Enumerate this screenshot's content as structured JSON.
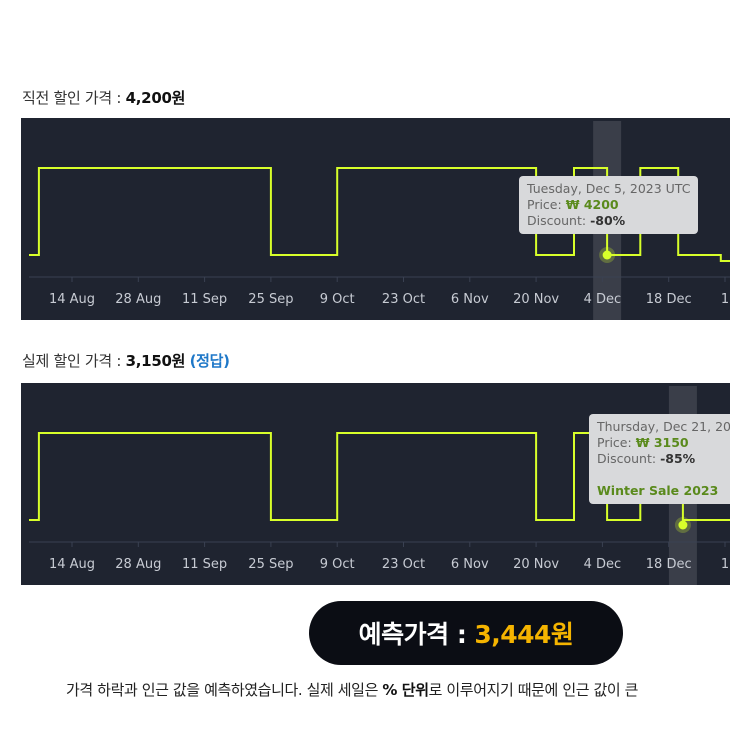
{
  "chart1_label": {
    "prefix": "직전 할인 가격 : ",
    "value": "4,200원"
  },
  "chart2_label": {
    "prefix": "실제 할인 가격 : ",
    "value": "3,150원",
    "tag": "(정답)"
  },
  "x_ticks": [
    "14 Aug",
    "28 Aug",
    "11 Sep",
    "25 Sep",
    "9 Oct",
    "23 Oct",
    "6 Nov",
    "20 Nov",
    "4 Dec",
    "18 Dec",
    "1"
  ],
  "tooltip1": {
    "date": "Tuesday, Dec 5, 2023 UTC",
    "price_label": "Price: ",
    "price": "₩ 4200",
    "discount_label": "Discount: ",
    "discount": "-80%"
  },
  "tooltip2": {
    "date": "Thursday, Dec 21, 20",
    "price_label": "Price: ",
    "price": "₩ 3150",
    "discount_label": "Discount: ",
    "discount": "-85%",
    "event": "Winter Sale 2023"
  },
  "prediction": {
    "label": "예측가격 : ",
    "value": "3,444원"
  },
  "note": {
    "pre": "가격 하락과 인근 값을 예측하였습니다. 실제 세일은 ",
    "bold": "% 단위",
    "post": "로 이루어지기 때문에 인근 값이 큰"
  },
  "colors": {
    "line": "#d8ff2a",
    "chart_bg": "#1f2430",
    "accent": "#f5b400",
    "correct": "#1f78c8"
  },
  "chart_data": [
    {
      "type": "line",
      "title": "",
      "xlabel": "",
      "ylabel": "",
      "x": [
        "2023-08-05",
        "2023-08-07",
        "2023-09-25",
        "2023-10-09",
        "2023-11-20",
        "2023-11-28",
        "2023-12-05",
        "2023-12-12",
        "2023-12-20",
        "2023-12-29"
      ],
      "series": [
        {
          "values": [
            "low",
            "high",
            "low",
            "high",
            "low",
            "high",
            "low",
            "high",
            "low",
            "lowest"
          ]
        }
      ],
      "highlight": {
        "date": "2023-12-05",
        "price": 4200,
        "discount": -80
      }
    },
    {
      "type": "line",
      "title": "",
      "xlabel": "",
      "ylabel": "",
      "x": [
        "2023-08-05",
        "2023-08-07",
        "2023-09-25",
        "2023-10-09",
        "2023-11-20",
        "2023-11-28",
        "2023-12-05",
        "2023-12-12",
        "2023-12-21"
      ],
      "series": [
        {
          "values": [
            "low",
            "high",
            "low",
            "high",
            "low",
            "high",
            "low",
            "high",
            "low"
          ]
        }
      ],
      "highlight": {
        "date": "2023-12-21",
        "price": 3150,
        "discount": -85,
        "event": "Winter Sale 2023"
      }
    }
  ]
}
